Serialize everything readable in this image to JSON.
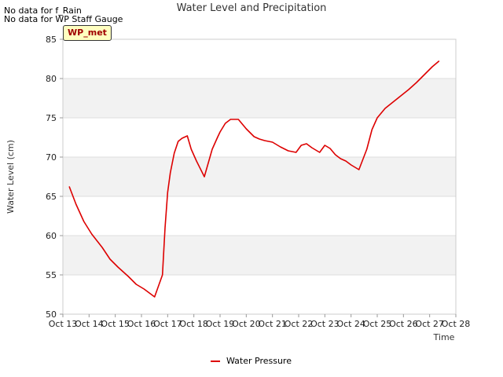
{
  "notes": [
    "No data for f_Rain",
    "No data for WP Staff Gauge"
  ],
  "badge": "WP_met",
  "chart_data": {
    "type": "line",
    "title": "Water Level and Precipitation",
    "xlabel": "Time",
    "ylabel": "Water Level (cm)",
    "ylim": [
      50,
      85
    ],
    "yticks": [
      50,
      55,
      60,
      65,
      70,
      75,
      80,
      85
    ],
    "xlim": [
      13,
      28
    ],
    "xticks": [
      13,
      14,
      15,
      16,
      17,
      18,
      19,
      20,
      21,
      22,
      23,
      24,
      25,
      26,
      27,
      28
    ],
    "xtick_labels": [
      "Oct 13",
      "Oct 14",
      "Oct 15",
      "Oct 16",
      "Oct 17",
      "Oct 18",
      "Oct 19",
      "Oct 20",
      "Oct 21",
      "Oct 22",
      "Oct 23",
      "Oct 24",
      "Oct 25",
      "Oct 26",
      "Oct 27",
      "Oct 28"
    ],
    "grid": true,
    "legend_position": "bottom-center",
    "series": [
      {
        "name": "Water Pressure",
        "color": "#dd0000",
        "x": [
          13.25,
          13.5,
          13.8,
          14.1,
          14.5,
          14.8,
          15.1,
          15.5,
          15.8,
          16.1,
          16.5,
          16.8,
          16.9,
          17.0,
          17.1,
          17.25,
          17.4,
          17.55,
          17.75,
          17.9,
          18.1,
          18.4,
          18.7,
          18.9,
          19.0,
          19.2,
          19.4,
          19.7,
          20.0,
          20.3,
          20.5,
          20.7,
          21.0,
          21.3,
          21.6,
          21.9,
          22.1,
          22.3,
          22.5,
          22.8,
          23.0,
          23.2,
          23.4,
          23.6,
          23.8,
          24.0,
          24.3,
          24.6,
          24.8,
          25.0,
          25.3,
          25.6,
          25.9,
          26.2,
          26.5,
          26.8,
          27.1,
          27.35
        ],
        "y": [
          66.2,
          64.0,
          61.8,
          60.2,
          58.5,
          57.0,
          56.0,
          54.8,
          53.8,
          53.2,
          52.2,
          55.0,
          61.0,
          65.5,
          68.0,
          70.5,
          72.0,
          72.4,
          72.7,
          71.0,
          69.5,
          67.5,
          71.0,
          72.5,
          73.2,
          74.3,
          74.8,
          74.8,
          73.6,
          72.6,
          72.3,
          72.1,
          71.9,
          71.3,
          70.8,
          70.6,
          71.5,
          71.7,
          71.2,
          70.6,
          71.5,
          71.1,
          70.3,
          69.8,
          69.5,
          69.0,
          68.4,
          71.0,
          73.5,
          75.0,
          76.2,
          77.0,
          77.8,
          78.6,
          79.5,
          80.5,
          81.5,
          82.2
        ]
      }
    ]
  }
}
